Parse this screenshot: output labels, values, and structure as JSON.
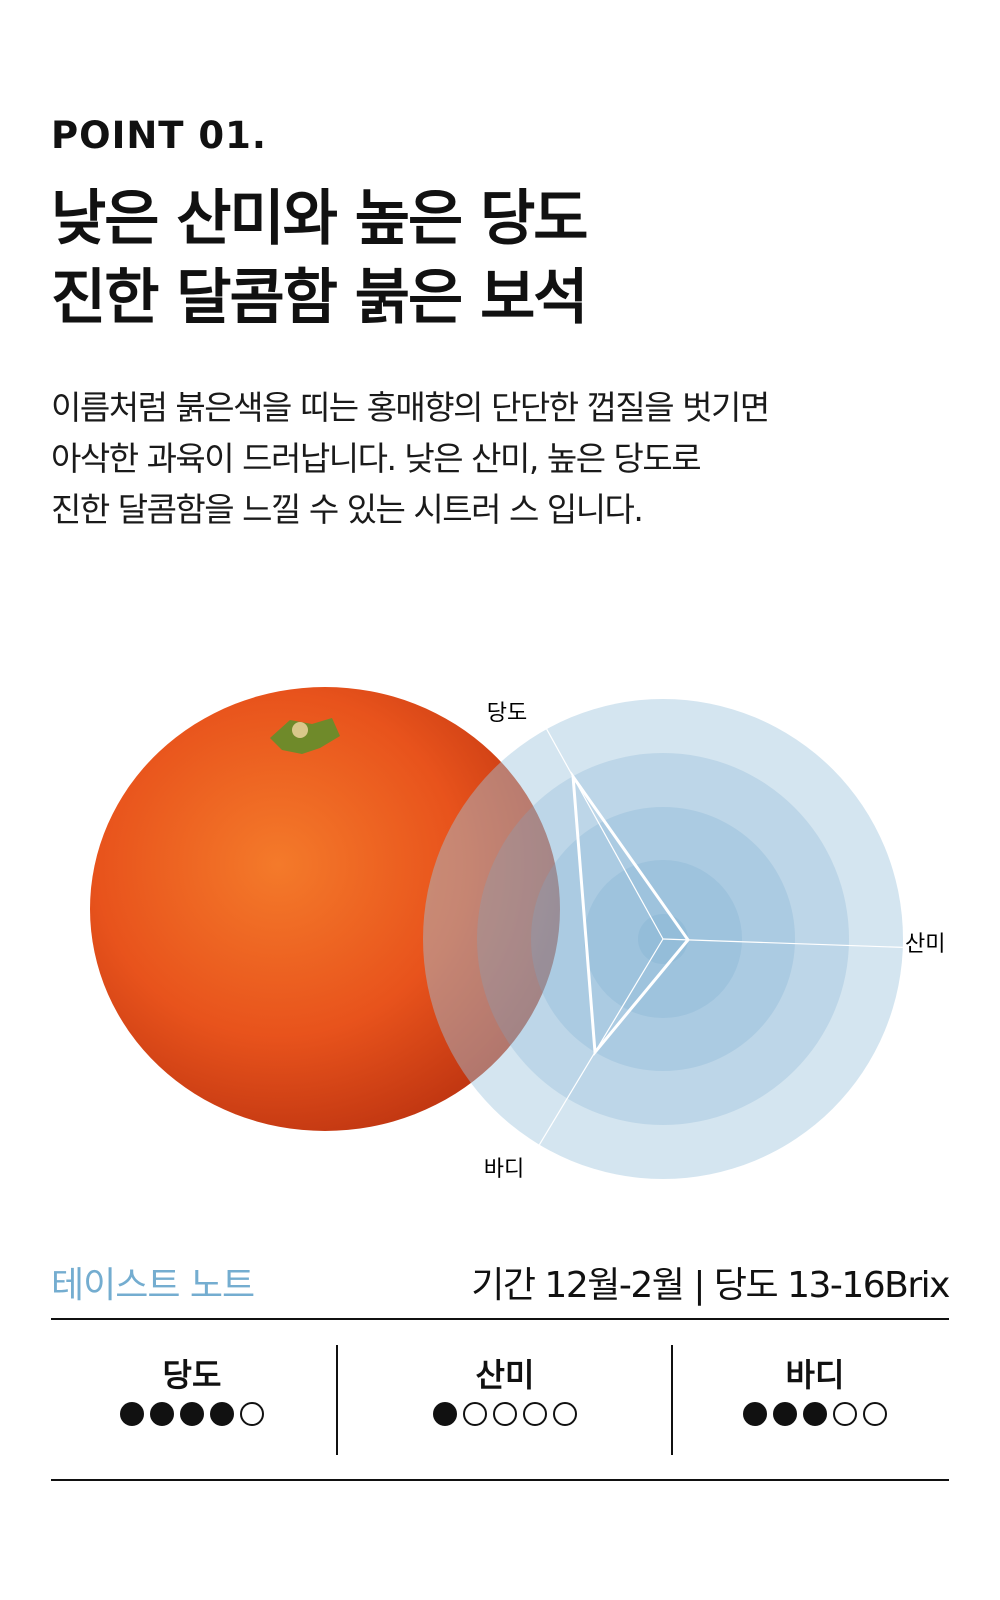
{
  "header": {
    "point": "POINT 01.",
    "title_lines": [
      "낮은 산미와 높은 당도",
      "진한 달콤함 붉은 보석"
    ],
    "description_lines": [
      "이름처럼 붉은색을 띠는 홍매향의 단단한 껍질을 벗기면",
      "아삭한 과육이 드러납니다. 낮은 산미, 높은 당도로",
      "진한 달콤함을 느낄 수 있는 시트러 스 입니다."
    ]
  },
  "chart_data": {
    "type": "radar",
    "axes": [
      "당도",
      "산미",
      "바디"
    ],
    "values": [
      4,
      1,
      3
    ],
    "max": 5,
    "ring_colors": [
      "#d3e4ef",
      "#b8d4e6",
      "#a5c9e0",
      "#93bfda",
      "#72aacd"
    ],
    "line_color": "#ffffff"
  },
  "taste_note": {
    "title": "테이스트 노트",
    "title_color": "#74add0",
    "info": "기간 12월-2월 | 당도 13-16Brix",
    "items": [
      {
        "label": "당도",
        "score": 4,
        "max": 5
      },
      {
        "label": "산미",
        "score": 1,
        "max": 5
      },
      {
        "label": "바디",
        "score": 3,
        "max": 5
      }
    ]
  }
}
